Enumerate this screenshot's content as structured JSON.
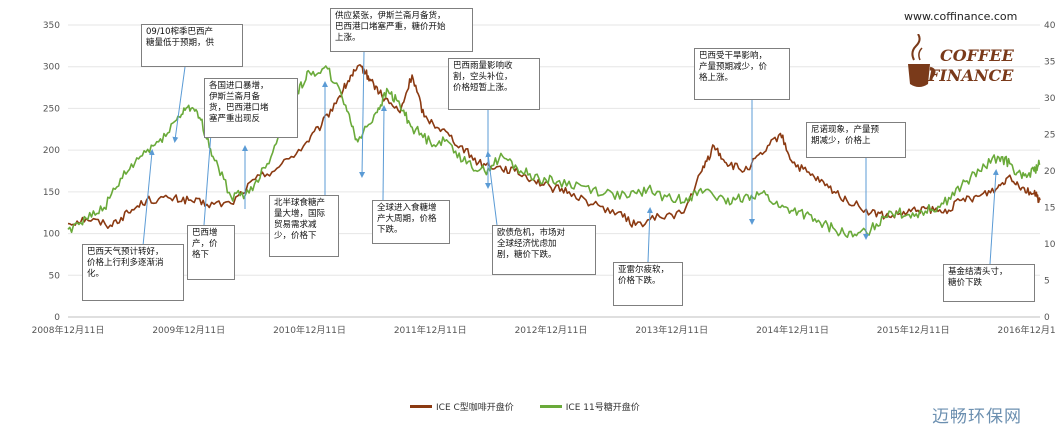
{
  "site": "www.coffinance.com",
  "logo": {
    "line1": "COFFEE",
    "line2": "FINANCE"
  },
  "watermark": "迈畅环保网",
  "colors": {
    "coffee": "#8b3a12",
    "sugar": "#6aaa3a",
    "grid": "#e6e6e6",
    "axis": "#bfbfbf",
    "arrow": "#5b9bd5"
  },
  "chart_data": {
    "type": "line",
    "x_ticks": [
      "2008年12月11日",
      "2009年12月11日",
      "2010年12月11日",
      "2011年12月11日",
      "2012年12月11日",
      "2013年12月11日",
      "2014年12月11日",
      "2015年12月11日",
      "2016年12月11日"
    ],
    "y_left": {
      "min": 0,
      "max": 350,
      "ticks": [
        "0",
        "50",
        "100",
        "150",
        "200",
        "250",
        "300",
        "350"
      ]
    },
    "y_right": {
      "min": 0,
      "max": 40,
      "ticks": [
        "0",
        "5",
        "10",
        "15",
        "20",
        "25",
        "30",
        "35",
        "40"
      ]
    },
    "x_range": [
      2008.95,
      2017.0
    ],
    "grid": true,
    "legend_position": "bottom",
    "series": [
      {
        "name": "ICE C型咖啡开盘价",
        "axis": "left",
        "points": [
          [
            2008.95,
            112
          ],
          [
            2009.1,
            118
          ],
          [
            2009.3,
            110
          ],
          [
            2009.45,
            125
          ],
          [
            2009.6,
            140
          ],
          [
            2009.8,
            142
          ],
          [
            2009.95,
            140
          ],
          [
            2010.1,
            135
          ],
          [
            2010.3,
            136
          ],
          [
            2010.5,
            165
          ],
          [
            2010.7,
            180
          ],
          [
            2010.9,
            205
          ],
          [
            2011.05,
            230
          ],
          [
            2011.2,
            265
          ],
          [
            2011.3,
            290
          ],
          [
            2011.38,
            300
          ],
          [
            2011.45,
            285
          ],
          [
            2011.55,
            265
          ],
          [
            2011.7,
            245
          ],
          [
            2011.8,
            290
          ],
          [
            2011.9,
            240
          ],
          [
            2012.05,
            225
          ],
          [
            2012.2,
            205
          ],
          [
            2012.35,
            185
          ],
          [
            2012.5,
            180
          ],
          [
            2012.65,
            175
          ],
          [
            2012.8,
            165
          ],
          [
            2012.95,
            155
          ],
          [
            2013.1,
            150
          ],
          [
            2013.3,
            135
          ],
          [
            2013.5,
            125
          ],
          [
            2013.65,
            110
          ],
          [
            2013.85,
            120
          ],
          [
            2014.05,
            125
          ],
          [
            2014.2,
            175
          ],
          [
            2014.3,
            205
          ],
          [
            2014.4,
            185
          ],
          [
            2014.55,
            175
          ],
          [
            2014.7,
            195
          ],
          [
            2014.85,
            220
          ],
          [
            2014.95,
            185
          ],
          [
            2015.1,
            170
          ],
          [
            2015.25,
            155
          ],
          [
            2015.4,
            140
          ],
          [
            2015.6,
            125
          ],
          [
            2015.75,
            120
          ],
          [
            2015.9,
            125
          ],
          [
            2016.05,
            130
          ],
          [
            2016.2,
            125
          ],
          [
            2016.35,
            140
          ],
          [
            2016.5,
            145
          ],
          [
            2016.65,
            155
          ],
          [
            2016.75,
            170
          ],
          [
            2016.85,
            155
          ],
          [
            2016.95,
            148
          ],
          [
            2017.0,
            140
          ]
        ]
      },
      {
        "name": "ICE 11号糖开盘价",
        "axis": "right",
        "points": [
          [
            2008.95,
            12
          ],
          [
            2009.1,
            13.5
          ],
          [
            2009.25,
            15
          ],
          [
            2009.4,
            19
          ],
          [
            2009.55,
            22
          ],
          [
            2009.7,
            24
          ],
          [
            2009.85,
            27
          ],
          [
            2009.95,
            29
          ],
          [
            2010.05,
            27
          ],
          [
            2010.15,
            22
          ],
          [
            2010.3,
            16.5
          ],
          [
            2010.45,
            17
          ],
          [
            2010.6,
            21
          ],
          [
            2010.75,
            27
          ],
          [
            2010.85,
            31
          ],
          [
            2010.95,
            33.5
          ],
          [
            2011.1,
            34
          ],
          [
            2011.25,
            29
          ],
          [
            2011.35,
            24
          ],
          [
            2011.5,
            28
          ],
          [
            2011.6,
            31
          ],
          [
            2011.7,
            29
          ],
          [
            2011.8,
            26
          ],
          [
            2011.95,
            24
          ],
          [
            2012.1,
            24
          ],
          [
            2012.25,
            21
          ],
          [
            2012.4,
            20
          ],
          [
            2012.55,
            22
          ],
          [
            2012.7,
            20
          ],
          [
            2012.85,
            19
          ],
          [
            2013.0,
            18.5
          ],
          [
            2013.2,
            18
          ],
          [
            2013.4,
            17
          ],
          [
            2013.6,
            16.5
          ],
          [
            2013.75,
            17.5
          ],
          [
            2013.95,
            16
          ],
          [
            2014.1,
            16.5
          ],
          [
            2014.25,
            17.5
          ],
          [
            2014.4,
            15.5
          ],
          [
            2014.55,
            16.5
          ],
          [
            2014.7,
            17
          ],
          [
            2014.85,
            15
          ],
          [
            2015.0,
            14.5
          ],
          [
            2015.15,
            13
          ],
          [
            2015.3,
            12
          ],
          [
            2015.45,
            11
          ],
          [
            2015.6,
            12
          ],
          [
            2015.75,
            14.5
          ],
          [
            2015.9,
            14
          ],
          [
            2016.05,
            14.5
          ],
          [
            2016.2,
            15.5
          ],
          [
            2016.35,
            18
          ],
          [
            2016.5,
            20
          ],
          [
            2016.65,
            22
          ],
          [
            2016.75,
            21
          ],
          [
            2016.85,
            19
          ],
          [
            2016.95,
            20
          ],
          [
            2017.0,
            21
          ]
        ]
      }
    ]
  },
  "annotations": [
    {
      "id": "a1",
      "text": "巴西天气预计转好，\n价格上行利多逐渐消\n化。"
    },
    {
      "id": "a2",
      "text": "09/10榨季巴西产\n糖量低于预期，供"
    },
    {
      "id": "a3",
      "text": "巴西增\n产，价\n格下"
    },
    {
      "id": "a4",
      "text": "各国进口暴增，\n伊斯兰斋月备\n货，巴西港口堵\n塞严重出现反"
    },
    {
      "id": "a5",
      "text": "北半球食糖产\n量大增，国际\n贸易需求减\n少，价格下"
    },
    {
      "id": "a6",
      "text": "供应紧张，伊斯兰斋月备货，\n巴西港口堵塞严重，糖价开始\n上涨。"
    },
    {
      "id": "a7",
      "text": "全球进入食糖增\n产大周期，价格\n下跌。"
    },
    {
      "id": "a8",
      "text": "巴西雨量影响收\n割，空头补位，\n价格短暂上涨。"
    },
    {
      "id": "a9",
      "text": "欧债危机，市场对\n全球经济忧虑加\n剧，糖价下跌。"
    },
    {
      "id": "a10",
      "text": "亚雷尔疲软，\n价格下跌。"
    },
    {
      "id": "a11",
      "text": "巴西受干旱影响，\n产量预期减少，价\n格上涨。"
    },
    {
      "id": "a12",
      "text": "尼诺现象，产量预\n期减少，价格上"
    },
    {
      "id": "a13",
      "text": "基金结清头寸，\n糖价下跌"
    }
  ]
}
